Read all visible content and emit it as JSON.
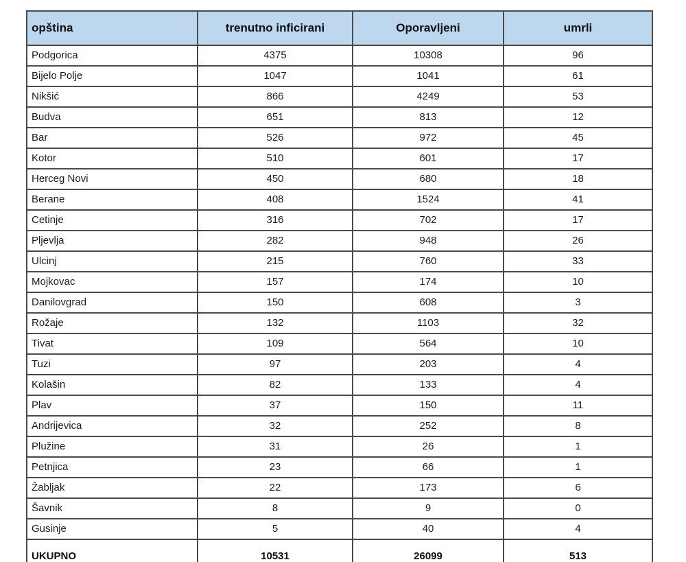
{
  "colors": {
    "header_bg": "#bdd7ee",
    "inner_border": "#4a4a4a",
    "outer_border": "#2e2e2e",
    "text": "#1c1c1c"
  },
  "table": {
    "columns": [
      {
        "label": "opština"
      },
      {
        "label": "trenutno inficirani"
      },
      {
        "label": "Oporavljeni"
      },
      {
        "label": "umrli"
      }
    ],
    "rows": [
      {
        "name": "Podgorica",
        "inficirani": 4375,
        "oporavljeni": 10308,
        "umrli": 96
      },
      {
        "name": "Bijelo Polje",
        "inficirani": 1047,
        "oporavljeni": 1041,
        "umrli": 61
      },
      {
        "name": "Nikšić",
        "inficirani": 866,
        "oporavljeni": 4249,
        "umrli": 53
      },
      {
        "name": "Budva",
        "inficirani": 651,
        "oporavljeni": 813,
        "umrli": 12
      },
      {
        "name": "Bar",
        "inficirani": 526,
        "oporavljeni": 972,
        "umrli": 45
      },
      {
        "name": "Kotor",
        "inficirani": 510,
        "oporavljeni": 601,
        "umrli": 17
      },
      {
        "name": "Herceg Novi",
        "inficirani": 450,
        "oporavljeni": 680,
        "umrli": 18
      },
      {
        "name": "Berane",
        "inficirani": 408,
        "oporavljeni": 1524,
        "umrli": 41
      },
      {
        "name": "Cetinje",
        "inficirani": 316,
        "oporavljeni": 702,
        "umrli": 17
      },
      {
        "name": "Pljevlja",
        "inficirani": 282,
        "oporavljeni": 948,
        "umrli": 26
      },
      {
        "name": "Ulcinj",
        "inficirani": 215,
        "oporavljeni": 760,
        "umrli": 33
      },
      {
        "name": "Mojkovac",
        "inficirani": 157,
        "oporavljeni": 174,
        "umrli": 10
      },
      {
        "name": "Danilovgrad",
        "inficirani": 150,
        "oporavljeni": 608,
        "umrli": 3
      },
      {
        "name": "Rožaje",
        "inficirani": 132,
        "oporavljeni": 1103,
        "umrli": 32
      },
      {
        "name": "Tivat",
        "inficirani": 109,
        "oporavljeni": 564,
        "umrli": 10
      },
      {
        "name": "Tuzi",
        "inficirani": 97,
        "oporavljeni": 203,
        "umrli": 4
      },
      {
        "name": "Kolašin",
        "inficirani": 82,
        "oporavljeni": 133,
        "umrli": 4
      },
      {
        "name": "Plav",
        "inficirani": 37,
        "oporavljeni": 150,
        "umrli": 11
      },
      {
        "name": "Andrijevica",
        "inficirani": 32,
        "oporavljeni": 252,
        "umrli": 8
      },
      {
        "name": "Plužine",
        "inficirani": 31,
        "oporavljeni": 26,
        "umrli": 1
      },
      {
        "name": "Petnjica",
        "inficirani": 23,
        "oporavljeni": 66,
        "umrli": 1
      },
      {
        "name": "Žabljak",
        "inficirani": 22,
        "oporavljeni": 173,
        "umrli": 6
      },
      {
        "name": "Šavnik",
        "inficirani": 8,
        "oporavljeni": 9,
        "umrli": 0
      },
      {
        "name": "Gusinje",
        "inficirani": 5,
        "oporavljeni": 40,
        "umrli": 4
      }
    ],
    "total": {
      "label": "UKUPNO",
      "inficirani": 10531,
      "oporavljeni": 26099,
      "umrli": 513
    }
  },
  "chart_data": {
    "type": "table",
    "title": "",
    "columns": [
      "opština",
      "trenutno inficirani",
      "Oporavljeni",
      "umrli"
    ],
    "categories": [
      "Podgorica",
      "Bijelo Polje",
      "Nikšić",
      "Budva",
      "Bar",
      "Kotor",
      "Herceg Novi",
      "Berane",
      "Cetinje",
      "Pljevlja",
      "Ulcinj",
      "Mojkovac",
      "Danilovgrad",
      "Rožaje",
      "Tivat",
      "Tuzi",
      "Kolašin",
      "Plav",
      "Andrijevica",
      "Plužine",
      "Petnjica",
      "Žabljak",
      "Šavnik",
      "Gusinje"
    ],
    "series": [
      {
        "name": "trenutno inficirani",
        "values": [
          4375,
          1047,
          866,
          651,
          526,
          510,
          450,
          408,
          316,
          282,
          215,
          157,
          150,
          132,
          109,
          97,
          82,
          37,
          32,
          31,
          23,
          22,
          8,
          5
        ]
      },
      {
        "name": "Oporavljeni",
        "values": [
          10308,
          1041,
          4249,
          813,
          972,
          601,
          680,
          1524,
          702,
          948,
          760,
          174,
          608,
          1103,
          564,
          203,
          133,
          150,
          252,
          26,
          66,
          173,
          9,
          40
        ]
      },
      {
        "name": "umrli",
        "values": [
          96,
          61,
          53,
          12,
          45,
          17,
          18,
          41,
          17,
          26,
          33,
          10,
          3,
          32,
          10,
          4,
          4,
          11,
          8,
          1,
          1,
          6,
          0,
          4
        ]
      }
    ],
    "totals": {
      "label": "UKUPNO",
      "trenutno_inficirani": 10531,
      "oporavljeni": 26099,
      "umrli": 513
    }
  }
}
